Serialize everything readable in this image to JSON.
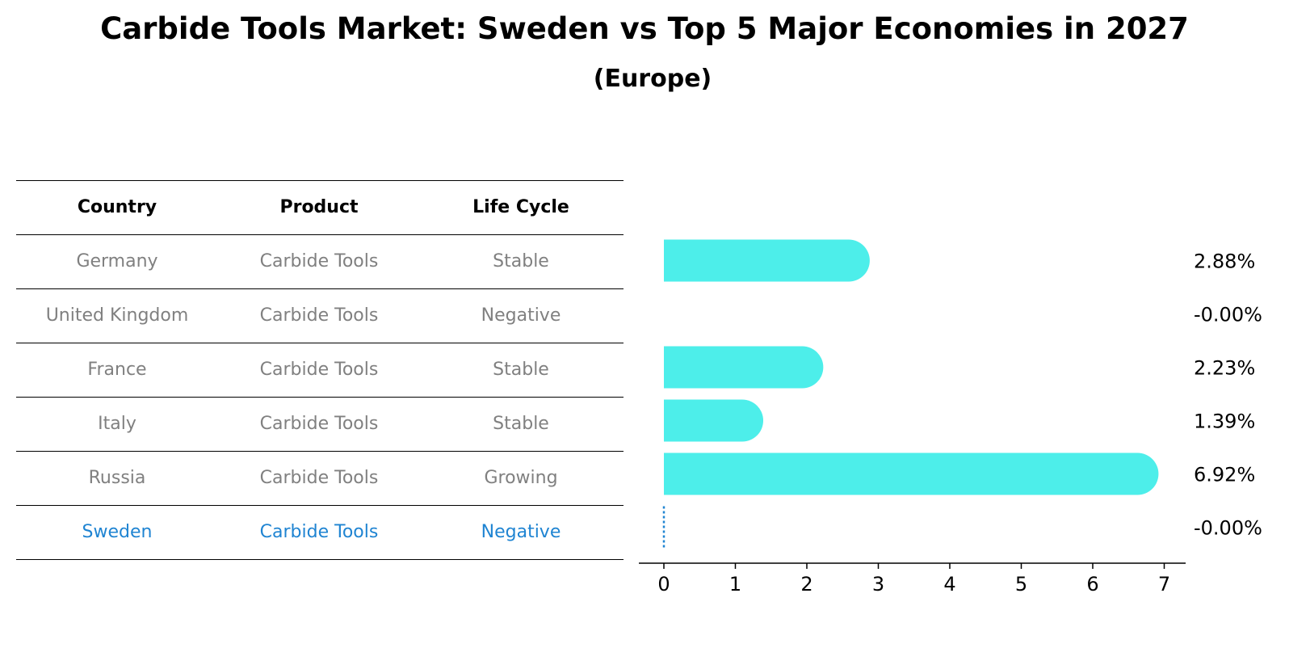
{
  "title": "Carbide Tools Market: Sweden vs Top 5 Major Economies in 2027",
  "subtitle": "(Europe)",
  "table": {
    "headers": [
      "Country",
      "Product",
      "Life Cycle"
    ],
    "rows": [
      {
        "country": "Germany",
        "product": "Carbide Tools",
        "life_cycle": "Stable"
      },
      {
        "country": "United Kingdom",
        "product": "Carbide Tools",
        "life_cycle": "Negative"
      },
      {
        "country": "France",
        "product": "Carbide Tools",
        "life_cycle": "Stable"
      },
      {
        "country": "Italy",
        "product": "Carbide Tools",
        "life_cycle": "Stable"
      },
      {
        "country": "Russia",
        "product": "Carbide Tools",
        "life_cycle": "Growing"
      },
      {
        "country": "Sweden",
        "product": "Carbide Tools",
        "life_cycle": "Negative"
      }
    ]
  },
  "colors": {
    "bar": "#4deeea",
    "highlight": "#1f84d2",
    "muted_text": "#808080"
  },
  "chart_data": {
    "type": "bar",
    "orientation": "horizontal",
    "categories": [
      "Germany",
      "United Kingdom",
      "France",
      "Italy",
      "Russia",
      "Sweden"
    ],
    "values": [
      2.88,
      -0.0,
      2.23,
      1.39,
      6.92,
      -0.0
    ],
    "value_labels": [
      "2.88%",
      "-0.00%",
      "2.23%",
      "1.39%",
      "6.92%",
      "-0.00%"
    ],
    "xlim": [
      -0.35,
      7.3
    ],
    "xticks": [
      0,
      1,
      2,
      3,
      4,
      5,
      6,
      7
    ],
    "xtick_labels": [
      "0",
      "1",
      "2",
      "3",
      "4",
      "5",
      "6",
      "7"
    ],
    "highlight": "Sweden"
  }
}
